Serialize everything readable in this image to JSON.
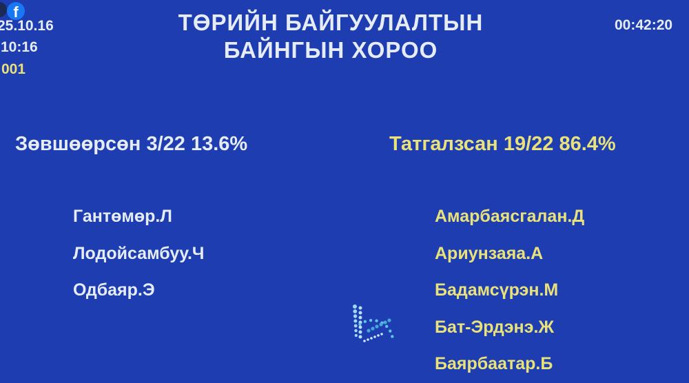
{
  "header": {
    "title_line1": "ТӨРИЙН БАЙГУУЛАЛТЫН",
    "title_line2": "БАЙНГЫН ХОРОО",
    "date": "25.10.16",
    "time_left": ":10:16",
    "code": "001",
    "timer": "00:42:20",
    "facebook_icon": "f"
  },
  "results": {
    "approved": "Зөвшөөрсөн 3/22 13.6%",
    "rejected": "Татгалзсан 19/22 86.4%"
  },
  "approved_names": [
    "Гантөмөр.Л",
    "Лодойсамбуу.Ч",
    "Одбаяр.Э"
  ],
  "rejected_names": [
    "Амарбаясгалан.Д",
    "Ариунзаяа.А",
    "Бадамсүрэн.М",
    "Бат-Эрдэнэ.Ж",
    "Баярбаатар.Б"
  ],
  "colors": {
    "background": "#1d3db0",
    "white_text": "#e6ecf6",
    "yellow_text": "#e9e27a"
  }
}
